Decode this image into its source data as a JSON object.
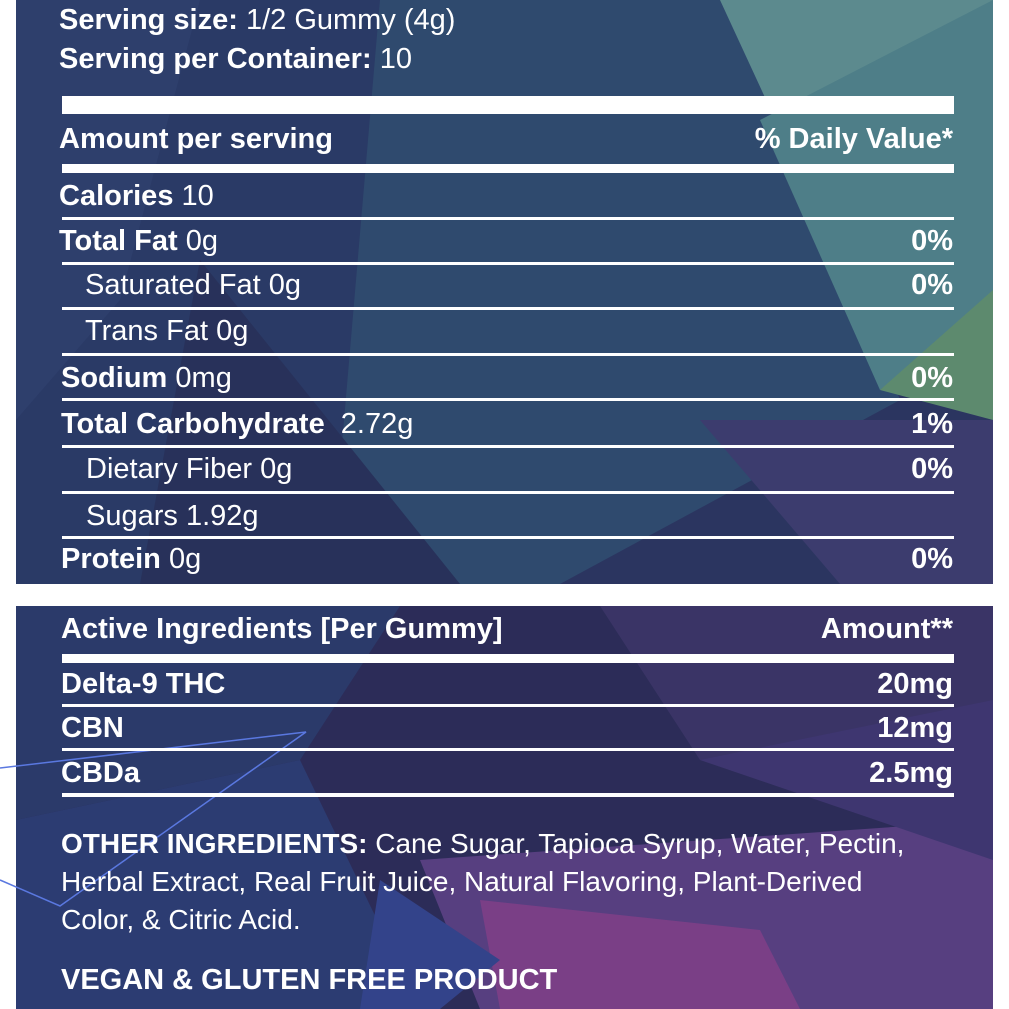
{
  "serving": {
    "size_label": "Serving size:",
    "size_value": "1/2 Gummy (4g)",
    "per_container_label": "Serving per Container:",
    "per_container_value": "10"
  },
  "nutrition": {
    "amount_header": "Amount per serving",
    "dv_header": "% Daily Value*",
    "calories_label": "Calories",
    "calories_value": "10",
    "rows": [
      {
        "label": "Total Fat",
        "amount": "0g",
        "dv": "0%"
      },
      {
        "label": "Saturated Fat",
        "amount": "0g",
        "dv": "0%"
      },
      {
        "label": "Trans Fat",
        "amount": "0g",
        "dv": ""
      },
      {
        "label": "Sodium",
        "amount": "0mg",
        "dv": "0%"
      },
      {
        "label": "Total Carbohydrate",
        "amount": "2.72g",
        "dv": "1%"
      },
      {
        "label": "Dietary Fiber",
        "amount": "0g",
        "dv": "0%"
      },
      {
        "label": "Sugars",
        "amount": "1.92g",
        "dv": ""
      },
      {
        "label": "Protein",
        "amount": "0g",
        "dv": "0%"
      }
    ]
  },
  "active": {
    "header_label": "Active Ingredients [Per Gummy]",
    "header_amount": "Amount**",
    "rows": [
      {
        "label": "Delta-9 THC",
        "amount": "20mg"
      },
      {
        "label": "CBN",
        "amount": "12mg"
      },
      {
        "label": "CBDa",
        "amount": "2.5mg"
      }
    ]
  },
  "other": {
    "label": "OTHER INGREDIENTS:",
    "line1": "Cane Sugar, Tapioca Syrup, Water, Pectin,",
    "line2": "Herbal Extract, Real Fruit Juice, Natural Flavoring, Plant-Derived",
    "line3": "Color, & Citric Acid."
  },
  "footer": {
    "vegan": "VEGAN & GLUTEN FREE PRODUCT"
  },
  "colors": {
    "panel_dark": "#2d2e5e",
    "panel_teal": "#4a7c86",
    "panel_purple": "#6a3f7c",
    "text": "#ffffff"
  }
}
